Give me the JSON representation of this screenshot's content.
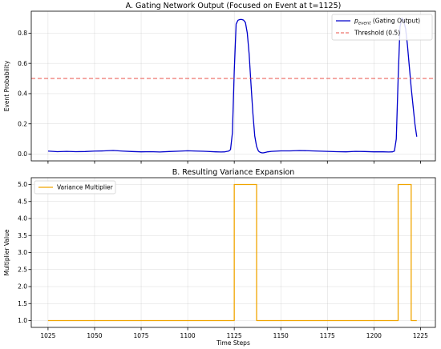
{
  "chart_data": [
    {
      "type": "line",
      "title": "A. Gating Network Output (Focused on Event at t=1125)",
      "xlabel": "",
      "ylabel": "Event Probability",
      "xlim": [
        1016,
        1233
      ],
      "ylim": [
        -0.045,
        0.945
      ],
      "xticks": [
        1025,
        1050,
        1075,
        1100,
        1125,
        1150,
        1175,
        1200,
        1225
      ],
      "show_xtick_labels": false,
      "yticks": [
        0.0,
        0.2,
        0.4,
        0.6,
        0.8
      ],
      "ytick_labels": [
        "0.0",
        "0.2",
        "0.4",
        "0.6",
        "0.8"
      ],
      "grid": true,
      "legend_position": "upper right",
      "series": [
        {
          "name_main": "p",
          "name_sub": "event",
          "name_rest": " (Gating Output)",
          "color": "#0000cc",
          "style": "solid",
          "x": [
            1025,
            1030,
            1035,
            1040,
            1045,
            1050,
            1055,
            1060,
            1065,
            1070,
            1075,
            1080,
            1085,
            1090,
            1095,
            1100,
            1105,
            1110,
            1115,
            1118,
            1120,
            1122,
            1123,
            1124,
            1125,
            1126,
            1127,
            1128,
            1129,
            1130,
            1131,
            1132,
            1133,
            1134,
            1135,
            1136,
            1137,
            1138,
            1139,
            1140,
            1141,
            1142,
            1143,
            1145,
            1148,
            1150,
            1155,
            1160,
            1165,
            1170,
            1175,
            1180,
            1185,
            1190,
            1195,
            1200,
            1205,
            1208,
            1210,
            1211,
            1212,
            1213,
            1214,
            1215,
            1216,
            1217,
            1218,
            1219,
            1220,
            1221,
            1222,
            1223
          ],
          "y": [
            0.02,
            0.016,
            0.018,
            0.016,
            0.017,
            0.02,
            0.021,
            0.024,
            0.02,
            0.017,
            0.015,
            0.016,
            0.014,
            0.017,
            0.019,
            0.022,
            0.02,
            0.018,
            0.015,
            0.014,
            0.015,
            0.02,
            0.03,
            0.14,
            0.55,
            0.86,
            0.885,
            0.89,
            0.89,
            0.886,
            0.87,
            0.8,
            0.66,
            0.46,
            0.27,
            0.12,
            0.05,
            0.02,
            0.011,
            0.008,
            0.009,
            0.012,
            0.015,
            0.018,
            0.02,
            0.021,
            0.021,
            0.023,
            0.022,
            0.02,
            0.018,
            0.016,
            0.015,
            0.018,
            0.017,
            0.015,
            0.015,
            0.014,
            0.015,
            0.02,
            0.1,
            0.5,
            0.84,
            0.9,
            0.88,
            0.83,
            0.72,
            0.58,
            0.44,
            0.32,
            0.2,
            0.115
          ]
        },
        {
          "name": "Threshold (0.5)",
          "color": "#e8534a",
          "style": "dashed",
          "x": [
            1016,
            1233
          ],
          "y": [
            0.5,
            0.5
          ]
        }
      ]
    },
    {
      "type": "line",
      "title": "B. Resulting Variance Expansion",
      "xlabel": "Time Steps",
      "ylabel": "Multiplier Value",
      "xlim": [
        1016,
        1233
      ],
      "ylim": [
        0.8,
        5.2
      ],
      "xticks": [
        1025,
        1050,
        1075,
        1100,
        1125,
        1150,
        1175,
        1200,
        1225
      ],
      "show_xtick_labels": true,
      "yticks": [
        1.0,
        1.5,
        2.0,
        2.5,
        3.0,
        3.5,
        4.0,
        4.5,
        5.0
      ],
      "ytick_labels": [
        "1.0",
        "1.5",
        "2.0",
        "2.5",
        "3.0",
        "3.5",
        "4.0",
        "4.5",
        "5.0"
      ],
      "grid": true,
      "legend_position": "upper left",
      "series": [
        {
          "name": "Variance Multiplier",
          "color": "#f0a500",
          "style": "solid",
          "x": [
            1025,
            1125,
            1125,
            1137,
            1137,
            1213,
            1213,
            1220,
            1220,
            1223
          ],
          "y": [
            1.0,
            1.0,
            5.0,
            5.0,
            1.0,
            1.0,
            5.0,
            5.0,
            1.0,
            1.0
          ]
        }
      ]
    }
  ]
}
